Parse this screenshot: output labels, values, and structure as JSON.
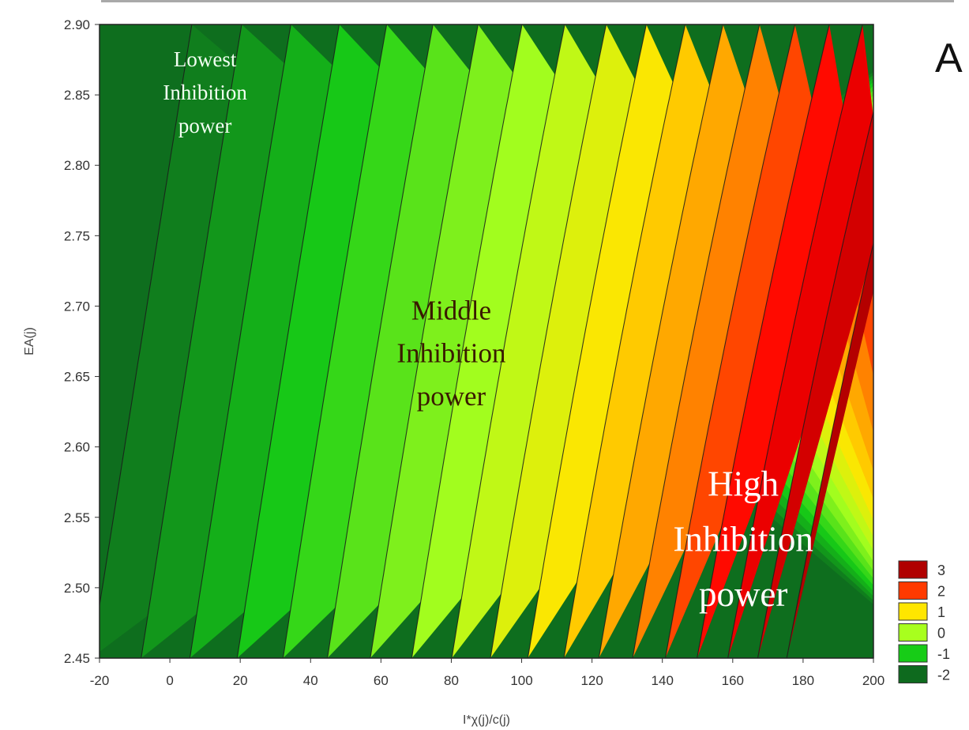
{
  "panel_letter": "A",
  "chart_data": {
    "type": "heatmap",
    "subtype": "filled-contour",
    "title": "",
    "xlabel": "I*χ(j)/c(j)",
    "ylabel": "EA(j)",
    "xlim": [
      -20,
      200
    ],
    "ylim": [
      2.45,
      2.9
    ],
    "x_ticks": [
      "-20",
      "0",
      "20",
      "40",
      "60",
      "80",
      "100",
      "120",
      "140",
      "160",
      "180",
      "200"
    ],
    "y_ticks": [
      "2.90",
      "2.85",
      "2.80",
      "2.75",
      "2.70",
      "2.65",
      "2.60",
      "2.55",
      "2.50",
      "2.45"
    ],
    "z_range": [
      -2.4,
      3.6
    ],
    "contour_levels": [
      -2.3,
      -2.0,
      -1.7,
      -1.4,
      -1.1,
      -0.8,
      -0.5,
      -0.2,
      0.1,
      0.4,
      0.7,
      1.0,
      1.3,
      1.6,
      1.9,
      2.2,
      2.5,
      2.8,
      3.1
    ],
    "legend": {
      "position": "bottom-right",
      "entries": [
        {
          "label": "3",
          "color": "#b00000"
        },
        {
          "label": "2",
          "color": "#ff3a00"
        },
        {
          "label": "1",
          "color": "#ffe600"
        },
        {
          "label": "0",
          "color": "#a8ff1e"
        },
        {
          "label": "-1",
          "color": "#17cc17"
        },
        {
          "label": "-2",
          "color": "#0e6a1e"
        }
      ]
    },
    "annotations": [
      {
        "lines": [
          "Lowest",
          "Inhibition",
          "power"
        ],
        "at": [
          10,
          2.852
        ],
        "color": "#f2fff2"
      },
      {
        "lines": [
          "Middle",
          "Inhibition",
          "power"
        ],
        "at": [
          80,
          2.667
        ],
        "color": "#3a1a00"
      },
      {
        "lines": [
          "High",
          "Inhibition",
          "power"
        ],
        "at": [
          163,
          2.535
        ],
        "color": "#ffffff"
      }
    ],
    "grid": false
  }
}
